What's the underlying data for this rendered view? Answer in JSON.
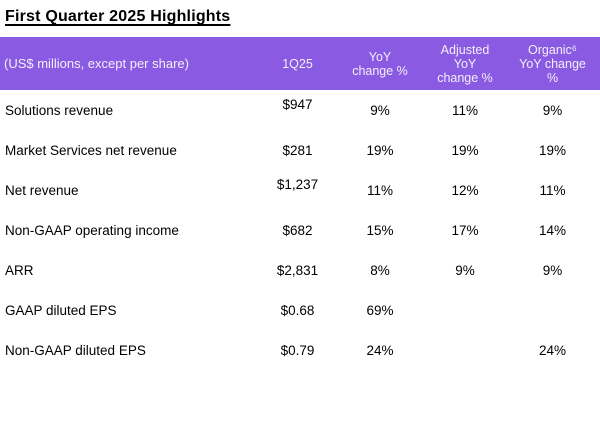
{
  "title": "First Quarter 2025 Highlights",
  "colors": {
    "header_bg": "#8a5ae2",
    "header_text": "#f3effc",
    "body_text": "#000000",
    "page_bg": "#ffffff"
  },
  "table": {
    "header": {
      "label": "(US$ millions, except per share)",
      "col_1q25": "1Q25",
      "col_yoy": "YoY\nchange %",
      "col_adjusted": "Adjusted\nYoY\nchange %",
      "col_organic": "Organic⁶\nYoY change\n%"
    },
    "rows": [
      {
        "label": "Solutions revenue",
        "q1": "$947",
        "yoy": "9%",
        "adjusted": "11%",
        "organic": "9%"
      },
      {
        "label": "Market Services net revenue",
        "q1": "$281",
        "yoy": "19%",
        "adjusted": "19%",
        "organic": "19%"
      },
      {
        "label": "Net revenue",
        "q1": "$1,237",
        "yoy": "11%",
        "adjusted": "12%",
        "organic": "11%"
      },
      {
        "label": "Non-GAAP operating income",
        "q1": "$682",
        "yoy": "15%",
        "adjusted": "17%",
        "organic": "14%"
      },
      {
        "label": "ARR",
        "q1": "$2,831",
        "yoy": "8%",
        "adjusted": "9%",
        "organic": "9%"
      },
      {
        "label": "GAAP diluted EPS",
        "q1": "$0.68",
        "yoy": "69%",
        "adjusted": "",
        "organic": ""
      },
      {
        "label": "Non-GAAP diluted EPS",
        "q1": "$0.79",
        "yoy": "24%",
        "adjusted": "",
        "organic": "24%"
      }
    ]
  }
}
